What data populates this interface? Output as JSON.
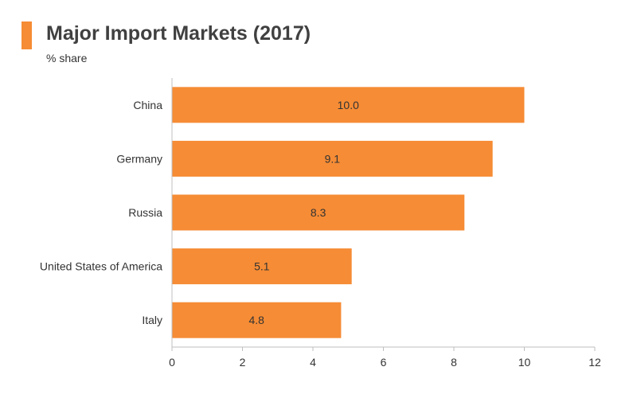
{
  "header": {
    "title": "Major Import Markets (2017)",
    "subtitle": "% share",
    "accent_color": "#f68c35"
  },
  "chart_data": {
    "type": "bar",
    "orientation": "horizontal",
    "title": "Major Import Markets (2017)",
    "subtitle": "% share",
    "categories": [
      "China",
      "Germany",
      "Russia",
      "United States of America",
      "Italy"
    ],
    "values": [
      10.0,
      9.1,
      8.3,
      5.1,
      4.8
    ],
    "value_labels": [
      "10.0",
      "9.1",
      "8.3",
      "5.1",
      "4.8"
    ],
    "xlim": [
      0,
      12
    ],
    "xticks": [
      0,
      2,
      4,
      6,
      8,
      10,
      12
    ],
    "xlabel": "",
    "ylabel": "",
    "grid": false,
    "legend": "none",
    "bar_color": "#f68c35",
    "axis_color": "#bfbfbf"
  }
}
